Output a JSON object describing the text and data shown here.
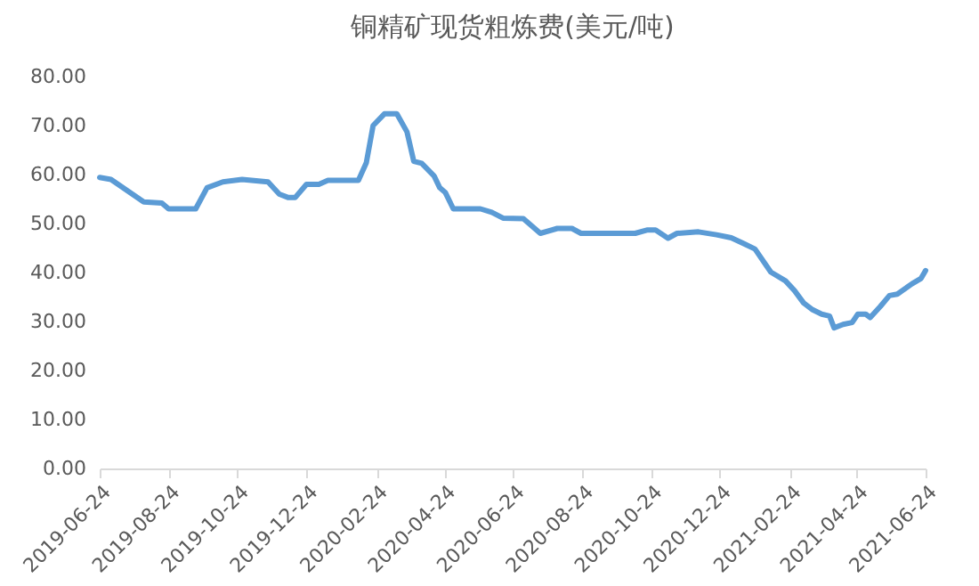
{
  "chart_data": {
    "type": "line",
    "title": "铜精矿现货粗炼费(美元/吨)",
    "x": [
      "2019-06-24",
      "2019-07-04",
      "2019-08-02",
      "2019-08-18",
      "2019-08-24",
      "2019-09-17",
      "2019-09-27",
      "2019-10-11",
      "2019-10-28",
      "2019-11-20",
      "2019-11-30",
      "2019-12-08",
      "2019-12-14",
      "2019-12-24",
      "2020-01-04",
      "2020-01-12",
      "2020-02-08",
      "2020-02-15",
      "2020-02-21",
      "2020-03-02",
      "2020-03-13",
      "2020-03-22",
      "2020-03-28",
      "2020-04-04",
      "2020-04-15",
      "2020-04-20",
      "2020-04-25",
      "2020-05-02",
      "2020-05-26",
      "2020-06-05",
      "2020-06-15",
      "2020-07-03",
      "2020-07-18",
      "2020-08-02",
      "2020-08-15",
      "2020-08-23",
      "2020-10-10",
      "2020-10-21",
      "2020-10-28",
      "2020-11-08",
      "2020-11-16",
      "2020-12-05",
      "2020-12-21",
      "2021-01-03",
      "2021-01-14",
      "2021-01-24",
      "2021-02-07",
      "2021-02-20",
      "2021-02-28",
      "2021-03-08",
      "2021-03-16",
      "2021-03-24",
      "2021-03-31",
      "2021-04-04",
      "2021-04-12",
      "2021-04-20",
      "2021-04-25",
      "2021-05-02",
      "2021-05-06",
      "2021-05-15",
      "2021-05-23",
      "2021-05-30",
      "2021-06-12",
      "2021-06-20",
      "2021-06-24"
    ],
    "series": [
      {
        "color": "#5b9bd5",
        "values": [
          59.4,
          59.0,
          54.4,
          54.2,
          53.0,
          53.0,
          57.3,
          58.5,
          59.0,
          58.5,
          56.0,
          55.3,
          55.3,
          58.0,
          58.0,
          58.8,
          58.8,
          62.4,
          70.0,
          72.4,
          72.4,
          68.7,
          62.7,
          62.3,
          59.7,
          57.3,
          56.3,
          53.0,
          53.0,
          52.3,
          51.1,
          51.0,
          48.0,
          49.0,
          49.0,
          48.0,
          48.0,
          48.7,
          48.7,
          47.0,
          48.0,
          48.3,
          47.7,
          47.1,
          45.9,
          44.8,
          40.1,
          38.3,
          36.3,
          33.8,
          32.4,
          31.5,
          31.1,
          28.7,
          29.4,
          29.8,
          31.5,
          31.5,
          30.8,
          33.1,
          35.3,
          35.6,
          37.7,
          38.8,
          40.4
        ]
      }
    ],
    "xlim": [
      "2019-06-24",
      "2021-06-24"
    ],
    "xticks": [
      "2019-06-24",
      "2019-08-24",
      "2019-10-24",
      "2019-12-24",
      "2020-02-24",
      "2020-04-24",
      "2020-06-24",
      "2020-08-24",
      "2020-10-24",
      "2020-12-24",
      "2021-02-24",
      "2021-04-24",
      "2021-06-24"
    ],
    "ylim": [
      0,
      80
    ],
    "yticks": [
      {
        "value": 0,
        "label": "0.00"
      },
      {
        "value": 10,
        "label": "10.00"
      },
      {
        "value": 20,
        "label": "20.00"
      },
      {
        "value": 30,
        "label": "30.00"
      },
      {
        "value": 40,
        "label": "40.00"
      },
      {
        "value": 50,
        "label": "50.00"
      },
      {
        "value": 60,
        "label": "60.00"
      },
      {
        "value": 70,
        "label": "70.00"
      },
      {
        "value": 80,
        "label": "80.00"
      }
    ],
    "grid": false,
    "marker": "none",
    "line_style": "solid"
  }
}
